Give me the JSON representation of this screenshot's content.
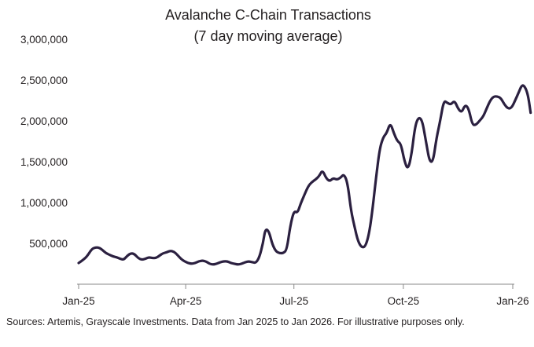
{
  "chart_data": {
    "type": "line",
    "title": "Avalanche C-Chain Transactions",
    "subtitle": "(7 day moving average)",
    "xlabel": "",
    "ylabel": "",
    "x_ticks": [
      "Jan-25",
      "Apr-25",
      "Jul-25",
      "Oct-25",
      "Jan-26"
    ],
    "y_ticks": [
      "3,000,000",
      "2,500,000",
      "2,000,000",
      "1,500,000",
      "1,000,000",
      "500,000"
    ],
    "ylim": [
      0,
      3000000
    ],
    "grid": false,
    "legend": "none",
    "series_color": "#2b2040",
    "series": [
      {
        "values": [
          [
            "2025-01-01",
            260000
          ],
          [
            "2025-01-05",
            300000
          ],
          [
            "2025-01-08",
            340000
          ],
          [
            "2025-01-12",
            430000
          ],
          [
            "2025-01-15",
            450000
          ],
          [
            "2025-01-18",
            450000
          ],
          [
            "2025-01-21",
            420000
          ],
          [
            "2025-01-24",
            380000
          ],
          [
            "2025-01-27",
            360000
          ],
          [
            "2025-01-30",
            340000
          ],
          [
            "2025-02-02",
            330000
          ],
          [
            "2025-02-05",
            310000
          ],
          [
            "2025-02-08",
            300000
          ],
          [
            "2025-02-11",
            350000
          ],
          [
            "2025-02-14",
            380000
          ],
          [
            "2025-02-17",
            370000
          ],
          [
            "2025-02-20",
            320000
          ],
          [
            "2025-02-23",
            300000
          ],
          [
            "2025-02-26",
            310000
          ],
          [
            "2025-03-01",
            330000
          ],
          [
            "2025-03-04",
            320000
          ],
          [
            "2025-03-07",
            320000
          ],
          [
            "2025-03-10",
            350000
          ],
          [
            "2025-03-13",
            380000
          ],
          [
            "2025-03-16",
            390000
          ],
          [
            "2025-03-19",
            410000
          ],
          [
            "2025-03-22",
            400000
          ],
          [
            "2025-03-25",
            360000
          ],
          [
            "2025-03-28",
            310000
          ],
          [
            "2025-03-31",
            280000
          ],
          [
            "2025-04-03",
            260000
          ],
          [
            "2025-04-06",
            250000
          ],
          [
            "2025-04-09",
            260000
          ],
          [
            "2025-04-12",
            280000
          ],
          [
            "2025-04-15",
            290000
          ],
          [
            "2025-04-18",
            280000
          ],
          [
            "2025-04-21",
            250000
          ],
          [
            "2025-04-24",
            240000
          ],
          [
            "2025-04-27",
            250000
          ],
          [
            "2025-04-30",
            270000
          ],
          [
            "2025-05-03",
            280000
          ],
          [
            "2025-05-06",
            280000
          ],
          [
            "2025-05-09",
            260000
          ],
          [
            "2025-05-12",
            250000
          ],
          [
            "2025-05-15",
            240000
          ],
          [
            "2025-05-18",
            250000
          ],
          [
            "2025-05-21",
            270000
          ],
          [
            "2025-05-24",
            280000
          ],
          [
            "2025-05-27",
            270000
          ],
          [
            "2025-05-30",
            260000
          ],
          [
            "2025-06-02",
            330000
          ],
          [
            "2025-06-05",
            500000
          ],
          [
            "2025-06-07",
            680000
          ],
          [
            "2025-06-10",
            650000
          ],
          [
            "2025-06-13",
            480000
          ],
          [
            "2025-06-16",
            400000
          ],
          [
            "2025-06-19",
            380000
          ],
          [
            "2025-06-22",
            380000
          ],
          [
            "2025-06-25",
            420000
          ],
          [
            "2025-06-28",
            720000
          ],
          [
            "2025-07-01",
            900000
          ],
          [
            "2025-07-04",
            870000
          ],
          [
            "2025-07-07",
            1000000
          ],
          [
            "2025-07-10",
            1100000
          ],
          [
            "2025-07-13",
            1200000
          ],
          [
            "2025-07-16",
            1250000
          ],
          [
            "2025-07-19",
            1280000
          ],
          [
            "2025-07-22",
            1320000
          ],
          [
            "2025-07-25",
            1400000
          ],
          [
            "2025-07-28",
            1300000
          ],
          [
            "2025-07-31",
            1260000
          ],
          [
            "2025-08-03",
            1300000
          ],
          [
            "2025-08-06",
            1280000
          ],
          [
            "2025-08-09",
            1300000
          ],
          [
            "2025-08-12",
            1350000
          ],
          [
            "2025-08-15",
            1250000
          ],
          [
            "2025-08-18",
            900000
          ],
          [
            "2025-08-21",
            700000
          ],
          [
            "2025-08-24",
            520000
          ],
          [
            "2025-08-27",
            450000
          ],
          [
            "2025-08-30",
            460000
          ],
          [
            "2025-09-02",
            600000
          ],
          [
            "2025-09-05",
            900000
          ],
          [
            "2025-09-08",
            1300000
          ],
          [
            "2025-09-11",
            1650000
          ],
          [
            "2025-09-14",
            1800000
          ],
          [
            "2025-09-17",
            1850000
          ],
          [
            "2025-09-20",
            1980000
          ],
          [
            "2025-09-23",
            1850000
          ],
          [
            "2025-09-26",
            1750000
          ],
          [
            "2025-09-29",
            1720000
          ],
          [
            "2025-10-02",
            1500000
          ],
          [
            "2025-10-05",
            1400000
          ],
          [
            "2025-10-08",
            1600000
          ],
          [
            "2025-10-11",
            1950000
          ],
          [
            "2025-10-14",
            2050000
          ],
          [
            "2025-10-17",
            2000000
          ],
          [
            "2025-10-20",
            1750000
          ],
          [
            "2025-10-23",
            1500000
          ],
          [
            "2025-10-26",
            1500000
          ],
          [
            "2025-10-29",
            1800000
          ],
          [
            "2025-11-01",
            2000000
          ],
          [
            "2025-11-04",
            2250000
          ],
          [
            "2025-11-07",
            2220000
          ],
          [
            "2025-11-10",
            2200000
          ],
          [
            "2025-11-13",
            2250000
          ],
          [
            "2025-11-16",
            2150000
          ],
          [
            "2025-11-19",
            2100000
          ],
          [
            "2025-11-22",
            2200000
          ],
          [
            "2025-11-25",
            2150000
          ],
          [
            "2025-11-28",
            1950000
          ],
          [
            "2025-12-01",
            1950000
          ],
          [
            "2025-12-04",
            2000000
          ],
          [
            "2025-12-07",
            2050000
          ],
          [
            "2025-12-10",
            2150000
          ],
          [
            "2025-12-13",
            2250000
          ],
          [
            "2025-12-16",
            2300000
          ],
          [
            "2025-12-19",
            2300000
          ],
          [
            "2025-12-22",
            2280000
          ],
          [
            "2025-12-25",
            2200000
          ],
          [
            "2025-12-28",
            2150000
          ],
          [
            "2025-12-31",
            2160000
          ],
          [
            "2026-01-03",
            2250000
          ],
          [
            "2026-01-06",
            2350000
          ],
          [
            "2026-01-09",
            2450000
          ],
          [
            "2026-01-12",
            2400000
          ],
          [
            "2026-01-14",
            2300000
          ],
          [
            "2026-01-16",
            2100000
          ]
        ]
      }
    ]
  },
  "footer": {
    "source_text": "Sources: Artemis, Grayscale Investments. Data from Jan 2025 to Jan 2026. For illustrative purposes only."
  }
}
